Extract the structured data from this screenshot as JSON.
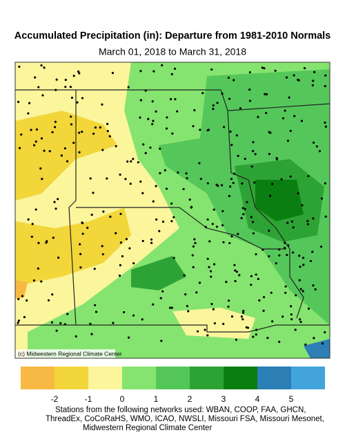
{
  "header": {
    "title": "Accumulated Precipitation (in): Departure from 1981-2010 Normals",
    "subtitle": "March 01, 2018 to March 31, 2018"
  },
  "map": {
    "credit": "(c) Midwestern Regional Climate Center"
  },
  "legend": {
    "colors": [
      "#f7b944",
      "#f2d63a",
      "#fbf59c",
      "#85e46f",
      "#55c75a",
      "#2ea335",
      "#0b7e11",
      "#2b7fb5",
      "#42a4db"
    ],
    "ticks": [
      -2,
      -1,
      0,
      1,
      2,
      3,
      4,
      5
    ]
  },
  "footer": {
    "lines": [
      "Stations from the following networks used: WBAN, COOP, FAA, GHCN,",
      "ThreadEx, CoCoRaHS, WMO, ICAO, NWSLI, Missouri FSA, Missouri Mesonet,",
      "Midwestern Regional Climate Center"
    ]
  }
}
